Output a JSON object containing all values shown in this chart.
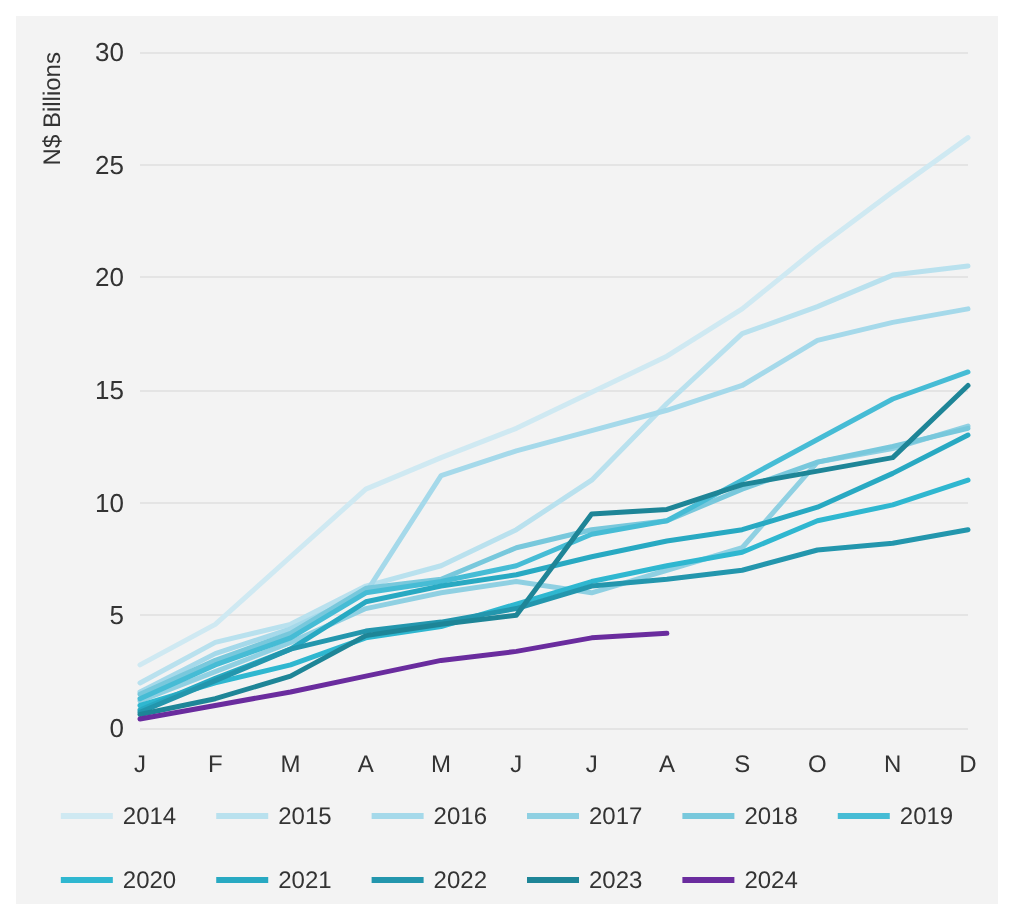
{
  "chart_data": {
    "type": "line",
    "ylabel": "N$ Billions",
    "categories": [
      "J",
      "F",
      "M",
      "A",
      "M",
      "J",
      "J",
      "A",
      "S",
      "O",
      "N",
      "D"
    ],
    "ylim": [
      0,
      30
    ],
    "yticks": [
      0,
      5,
      10,
      15,
      20,
      25,
      30
    ],
    "grid": "y",
    "legend": "bottom",
    "marker": "none",
    "line_style": "solid",
    "series": [
      {
        "name": "2014",
        "color": "#cfe9f2",
        "values": [
          2.8,
          4.6,
          7.6,
          10.6,
          12.0,
          13.3,
          14.9,
          16.5,
          18.6,
          21.3,
          23.8,
          26.2
        ]
      },
      {
        "name": "2015",
        "color": "#b9e1ee",
        "values": [
          2.0,
          3.8,
          4.6,
          6.3,
          7.2,
          8.8,
          11.0,
          14.4,
          17.5,
          18.7,
          20.1,
          20.5
        ]
      },
      {
        "name": "2016",
        "color": "#a5d9ea",
        "values": [
          1.6,
          3.3,
          4.4,
          6.0,
          11.2,
          12.3,
          13.2,
          14.1,
          15.2,
          17.2,
          18.0,
          18.6
        ]
      },
      {
        "name": "2017",
        "color": "#8fd0e2",
        "values": [
          1.2,
          2.5,
          3.8,
          5.3,
          6.0,
          6.5,
          6.0,
          7.0,
          8.0,
          11.8,
          12.4,
          13.4
        ]
      },
      {
        "name": "2018",
        "color": "#78c8dc",
        "values": [
          1.5,
          3.0,
          4.2,
          6.2,
          6.6,
          8.0,
          8.8,
          9.2,
          10.6,
          11.8,
          12.5,
          13.3
        ]
      },
      {
        "name": "2019",
        "color": "#46bcd5",
        "values": [
          1.3,
          2.8,
          4.0,
          6.0,
          6.5,
          7.2,
          8.6,
          9.2,
          11.0,
          12.8,
          14.6,
          15.8
        ]
      },
      {
        "name": "2020",
        "color": "#2fb7d0",
        "values": [
          1.0,
          2.0,
          2.8,
          4.0,
          4.5,
          5.5,
          6.5,
          7.2,
          7.8,
          9.2,
          9.9,
          11.0
        ]
      },
      {
        "name": "2021",
        "color": "#28a9c2",
        "values": [
          0.8,
          2.2,
          3.5,
          5.6,
          6.3,
          6.8,
          7.6,
          8.3,
          8.8,
          9.8,
          11.3,
          13.0
        ]
      },
      {
        "name": "2022",
        "color": "#2396ad",
        "values": [
          0.7,
          2.1,
          3.5,
          4.3,
          4.7,
          5.3,
          6.3,
          6.6,
          7.0,
          7.9,
          8.2,
          8.8
        ]
      },
      {
        "name": "2023",
        "color": "#1e8597",
        "values": [
          0.6,
          1.3,
          2.3,
          4.1,
          4.6,
          5.0,
          9.5,
          9.7,
          10.8,
          11.4,
          12.0,
          15.2
        ]
      },
      {
        "name": "2024",
        "color": "#6a2c9e",
        "values": [
          0.4,
          1.0,
          1.6,
          2.3,
          3.0,
          3.4,
          4.0,
          4.2,
          null,
          null,
          null,
          null
        ]
      }
    ]
  }
}
